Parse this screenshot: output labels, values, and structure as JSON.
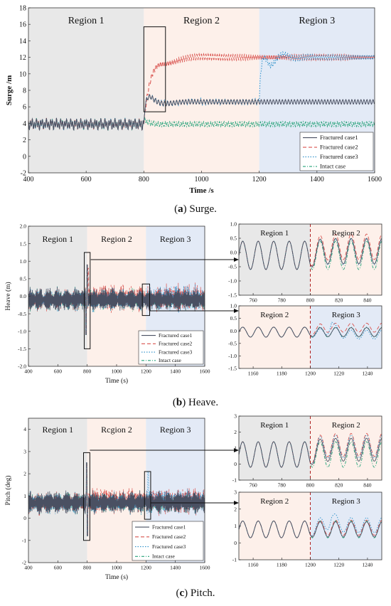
{
  "colors": {
    "fractured1": "#4a5062",
    "fractured2": "#d9534f",
    "fractured3": "#2a8fc9",
    "intact": "#27a37a",
    "region1_bg": "#e8e8e8",
    "region2_bg": "#fdf0ea",
    "region3_bg": "#e3eaf6",
    "dashed_divider": "#b02020"
  },
  "legend": {
    "fractured1": "Fractured case1",
    "fractured2": "Fractured case2",
    "fractured3": "Fractured case3",
    "intact": "Intact case"
  },
  "captions": {
    "a_letter": "a",
    "a_text": " Surge.",
    "b_letter": "b",
    "b_text": " Heave.",
    "c_letter": "c",
    "c_text": " Pitch."
  },
  "chart_data": [
    {
      "id": "surge",
      "type": "line",
      "xlabel": "Time /s",
      "ylabel": "Surge /m",
      "xlim": [
        400,
        1600
      ],
      "ylim": [
        -2,
        18
      ],
      "xticks": [
        400,
        600,
        800,
        1000,
        1200,
        1400,
        1600
      ],
      "yticks": [
        -2,
        0,
        2,
        4,
        6,
        8,
        10,
        12,
        14,
        16,
        18
      ],
      "regions": [
        {
          "label": "Region 1",
          "x0": 400,
          "x1": 800
        },
        {
          "label": "Region 2",
          "x0": 800,
          "x1": 1200
        },
        {
          "label": "Region 3",
          "x0": 1200,
          "x1": 1600
        }
      ],
      "legend_position": "bottom-right",
      "series": [
        {
          "name": "Fractured case1",
          "baseline_before": 3.9,
          "baseline_after": 6.6,
          "peak": 8.3
        },
        {
          "name": "Fractured case2",
          "baseline_before": 3.9,
          "baseline_after": 12.0,
          "peak": 14.6
        },
        {
          "name": "Fractured case3",
          "baseline_before": 3.9,
          "baseline_after": 12.0,
          "peak": 14.4
        },
        {
          "name": "Intact case",
          "baseline_before": 3.9,
          "baseline_after": 3.9
        }
      ]
    },
    {
      "id": "heave",
      "type": "line",
      "xlabel": "Time (s)",
      "ylabel": "Heave (m)",
      "xlim": [
        400,
        1600
      ],
      "ylim": [
        -2.0,
        2.0
      ],
      "xticks": [
        400,
        600,
        800,
        1000,
        1200,
        1400,
        1600
      ],
      "yticks": [
        "-2.0",
        "-1.5",
        "-1.0",
        "-0.5",
        "0.0",
        "0.5",
        "1.0",
        "1.5",
        "2.0"
      ],
      "regions": [
        {
          "label": "Region 1",
          "x0": 400,
          "x1": 800
        },
        {
          "label": "Region 2",
          "x0": 800,
          "x1": 1200
        },
        {
          "label": "Region 3",
          "x0": 1200,
          "x1": 1600
        }
      ],
      "legend_position": "bottom-right",
      "zoom1": {
        "xlim": [
          750,
          850
        ],
        "ylim": [
          -1.5,
          1.0
        ],
        "xticks": [
          760,
          780,
          800,
          820,
          840
        ],
        "yticks": [
          "-1.5",
          "-1.0",
          "-0.5",
          "0.0",
          "0.5",
          "1.0"
        ],
        "regions": [
          {
            "label": "Region 1",
            "x0": 750,
            "x1": 800
          },
          {
            "label": "Region 2",
            "x0": 800,
            "x1": 850
          }
        ],
        "divider": 800
      },
      "zoom2": {
        "xlim": [
          1150,
          1250
        ],
        "ylim": [
          -1.5,
          1.0
        ],
        "xticks": [
          1160,
          1180,
          1200,
          1220,
          1240
        ],
        "yticks": [
          "-1.5",
          "-1.0",
          "-0.5",
          "0.0",
          "0.5",
          "1.0"
        ],
        "regions": [
          {
            "label": "Region 2",
            "x0": 1150,
            "x1": 1200
          },
          {
            "label": "Region 3",
            "x0": 1200,
            "x1": 1250
          }
        ],
        "divider": 1200
      }
    },
    {
      "id": "pitch",
      "type": "line",
      "xlabel": "Time (s)",
      "ylabel": "Pitch (deg)",
      "xlim": [
        400,
        1600
      ],
      "ylim": [
        -2,
        4.5
      ],
      "xticks": [
        400,
        600,
        800,
        1000,
        1200,
        1400,
        1600
      ],
      "yticks": [
        -2,
        -1,
        0,
        1,
        2,
        3,
        4
      ],
      "regions": [
        {
          "label": "Region 1",
          "x0": 400,
          "x1": 800
        },
        {
          "label": "Rcgion 2",
          "x0": 800,
          "x1": 1200
        },
        {
          "label": "Region 3",
          "x0": 1200,
          "x1": 1600
        }
      ],
      "legend_position": "bottom-right",
      "zoom1": {
        "xlim": [
          750,
          850
        ],
        "ylim": [
          -1,
          3
        ],
        "xticks": [
          760,
          780,
          800,
          820,
          840
        ],
        "yticks": [
          -1,
          0,
          1,
          2,
          3
        ],
        "regions": [
          {
            "label": "Region 1",
            "x0": 750,
            "x1": 800
          },
          {
            "label": "Region 2",
            "x0": 800,
            "x1": 850
          }
        ],
        "divider": 800
      },
      "zoom2": {
        "xlim": [
          1150,
          1250
        ],
        "ylim": [
          -1,
          3
        ],
        "xticks": [
          1160,
          1180,
          1200,
          1220,
          1240
        ],
        "yticks": [
          -1,
          0,
          1,
          2,
          3
        ],
        "regions": [
          {
            "label": "Region 2",
            "x0": 1150,
            "x1": 1200
          },
          {
            "label": "Region 3",
            "x0": 1200,
            "x1": 1250
          }
        ],
        "divider": 1200
      }
    }
  ]
}
